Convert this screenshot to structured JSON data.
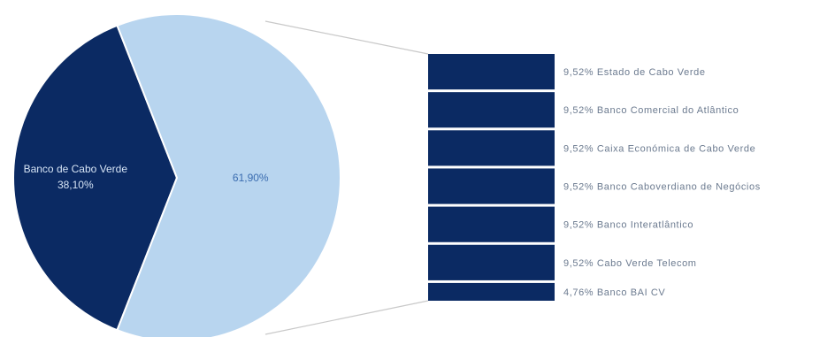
{
  "chart_data": {
    "type": "bar-of-pie",
    "pie": {
      "slices": [
        {
          "label": "Banco de Cabo Verde",
          "value": 38.1,
          "value_label": "38,10%",
          "color": "#0b2a63"
        },
        {
          "label": "",
          "value": 61.9,
          "value_label": "61,90%",
          "color": "#b8d5ef"
        }
      ]
    },
    "bar": {
      "color": "#0b2a63",
      "items": [
        {
          "label": "Estado de Cabo Verde",
          "value": 9.52,
          "value_label": "9,52%"
        },
        {
          "label": "Banco Comercial do Atlântico",
          "value": 9.52,
          "value_label": "9,52%"
        },
        {
          "label": "Caixa Económica de Cabo Verde",
          "value": 9.52,
          "value_label": "9,52%"
        },
        {
          "label": "Banco Caboverdiano de Negócios",
          "value": 9.52,
          "value_label": "9,52%"
        },
        {
          "label": "Banco Interatlântico",
          "value": 9.52,
          "value_label": "9,52%"
        },
        {
          "label": "Cabo Verde Telecom",
          "value": 9.52,
          "value_label": "9,52%"
        },
        {
          "label": "Banco BAI CV",
          "value": 4.76,
          "value_label": "4,76%"
        }
      ]
    },
    "connector_color": "#c9c9c9"
  }
}
